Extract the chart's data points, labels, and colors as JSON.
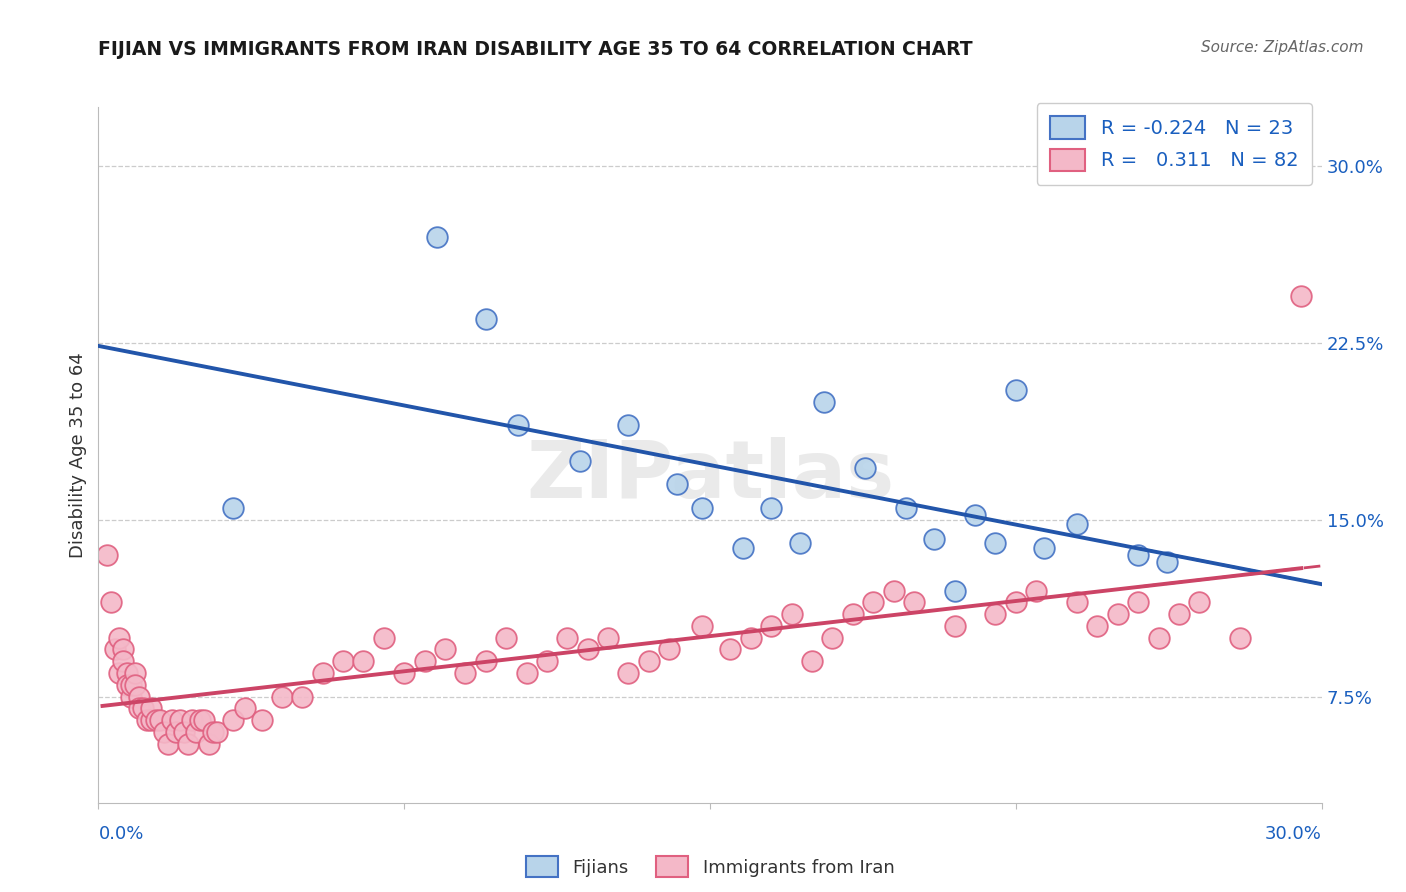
{
  "title": "FIJIAN VS IMMIGRANTS FROM IRAN DISABILITY AGE 35 TO 64 CORRELATION CHART",
  "source": "Source: ZipAtlas.com",
  "ylabel": "Disability Age 35 to 64",
  "xmin": 0.0,
  "xmax": 0.3,
  "ymin": 0.03,
  "ymax": 0.325,
  "ytick_vals": [
    0.075,
    0.15,
    0.225,
    0.3
  ],
  "ytick_labels": [
    "7.5%",
    "15.0%",
    "22.5%",
    "30.0%"
  ],
  "fijian_r": "-0.224",
  "fijian_n": "23",
  "iran_r": "0.311",
  "iran_n": "82",
  "fijian_face_color": "#b8d4ea",
  "fijian_edge_color": "#4472c4",
  "iran_face_color": "#f4b8c8",
  "iran_edge_color": "#e06080",
  "fijian_line_color": "#2255aa",
  "iran_line_color": "#cc4466",
  "fijian_x": [
    0.033,
    0.083,
    0.095,
    0.103,
    0.118,
    0.13,
    0.142,
    0.148,
    0.158,
    0.165,
    0.172,
    0.178,
    0.188,
    0.198,
    0.205,
    0.21,
    0.215,
    0.22,
    0.225,
    0.232,
    0.24,
    0.255,
    0.262
  ],
  "fijian_y": [
    0.155,
    0.27,
    0.235,
    0.19,
    0.175,
    0.19,
    0.165,
    0.155,
    0.138,
    0.155,
    0.14,
    0.2,
    0.172,
    0.155,
    0.142,
    0.12,
    0.152,
    0.14,
    0.205,
    0.138,
    0.148,
    0.135,
    0.132
  ],
  "iran_x": [
    0.002,
    0.003,
    0.004,
    0.005,
    0.005,
    0.006,
    0.006,
    0.007,
    0.007,
    0.008,
    0.008,
    0.009,
    0.009,
    0.01,
    0.01,
    0.011,
    0.012,
    0.013,
    0.013,
    0.014,
    0.015,
    0.016,
    0.017,
    0.018,
    0.019,
    0.02,
    0.021,
    0.022,
    0.023,
    0.024,
    0.025,
    0.026,
    0.027,
    0.028,
    0.029,
    0.033,
    0.036,
    0.04,
    0.045,
    0.05,
    0.055,
    0.06,
    0.065,
    0.07,
    0.075,
    0.08,
    0.085,
    0.09,
    0.095,
    0.1,
    0.105,
    0.11,
    0.115,
    0.12,
    0.125,
    0.13,
    0.135,
    0.14,
    0.148,
    0.155,
    0.16,
    0.165,
    0.17,
    0.175,
    0.18,
    0.185,
    0.19,
    0.195,
    0.2,
    0.21,
    0.22,
    0.225,
    0.23,
    0.24,
    0.245,
    0.25,
    0.255,
    0.26,
    0.265,
    0.27,
    0.28,
    0.295
  ],
  "iran_y": [
    0.135,
    0.115,
    0.095,
    0.1,
    0.085,
    0.095,
    0.09,
    0.085,
    0.08,
    0.075,
    0.08,
    0.085,
    0.08,
    0.075,
    0.07,
    0.07,
    0.065,
    0.065,
    0.07,
    0.065,
    0.065,
    0.06,
    0.055,
    0.065,
    0.06,
    0.065,
    0.06,
    0.055,
    0.065,
    0.06,
    0.065,
    0.065,
    0.055,
    0.06,
    0.06,
    0.065,
    0.07,
    0.065,
    0.075,
    0.075,
    0.085,
    0.09,
    0.09,
    0.1,
    0.085,
    0.09,
    0.095,
    0.085,
    0.09,
    0.1,
    0.085,
    0.09,
    0.1,
    0.095,
    0.1,
    0.085,
    0.09,
    0.095,
    0.105,
    0.095,
    0.1,
    0.105,
    0.11,
    0.09,
    0.1,
    0.11,
    0.115,
    0.12,
    0.115,
    0.105,
    0.11,
    0.115,
    0.12,
    0.115,
    0.105,
    0.11,
    0.115,
    0.1,
    0.11,
    0.115,
    0.1,
    0.245
  ]
}
